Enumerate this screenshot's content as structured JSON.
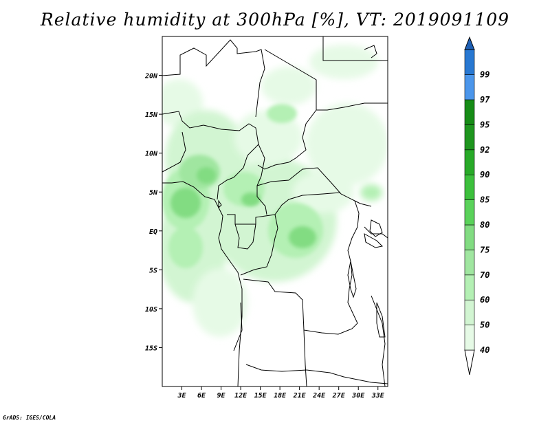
{
  "title": "Relative humidity at 300hPa [%], VT: 2019091109",
  "credit": "GrADS: IGES/COLA",
  "map": {
    "lon_range": [
      0,
      34.5
    ],
    "lat_range": [
      -20,
      25
    ],
    "lat_ticks": [
      {
        "value": 20,
        "label": "20N"
      },
      {
        "value": 15,
        "label": "15N"
      },
      {
        "value": 10,
        "label": "10N"
      },
      {
        "value": 5,
        "label": "5N"
      },
      {
        "value": 0,
        "label": "EQ"
      },
      {
        "value": -5,
        "label": "5S"
      },
      {
        "value": -10,
        "label": "10S"
      },
      {
        "value": -15,
        "label": "15S"
      }
    ],
    "lon_ticks": [
      {
        "value": 3,
        "label": "3E"
      },
      {
        "value": 6,
        "label": "6E"
      },
      {
        "value": 9,
        "label": "9E"
      },
      {
        "value": 12,
        "label": "12E"
      },
      {
        "value": 15,
        "label": "15E"
      },
      {
        "value": 18,
        "label": "18E"
      },
      {
        "value": 21,
        "label": "21E"
      },
      {
        "value": 24,
        "label": "24E"
      },
      {
        "value": 27,
        "label": "27E"
      },
      {
        "value": 30,
        "label": "30E"
      },
      {
        "value": 33,
        "label": "33E"
      }
    ]
  },
  "colorbar": {
    "levels": [
      {
        "label": "40",
        "color": "#e6fae6"
      },
      {
        "label": "50",
        "color": "#d2f5d2"
      },
      {
        "label": "60",
        "color": "#b4f0b4"
      },
      {
        "label": "70",
        "color": "#a0e6a0"
      },
      {
        "label": "75",
        "color": "#82dc82"
      },
      {
        "label": "80",
        "color": "#5ad25a"
      },
      {
        "label": "85",
        "color": "#3cc03c"
      },
      {
        "label": "90",
        "color": "#28aa28"
      },
      {
        "label": "92",
        "color": "#1e961e"
      },
      {
        "label": "95",
        "color": "#168c16"
      },
      {
        "label": "97",
        "color": "#4b96eb"
      },
      {
        "label": "99",
        "color": "#2878d2"
      }
    ],
    "below_color": "#ffffff",
    "above_color": "#1e5fb4"
  },
  "colors": {
    "humidity_light": "#e6fae6",
    "humidity_mid": "#b4f0b4",
    "humidity_high": "#82dc82",
    "border": "#000000"
  }
}
